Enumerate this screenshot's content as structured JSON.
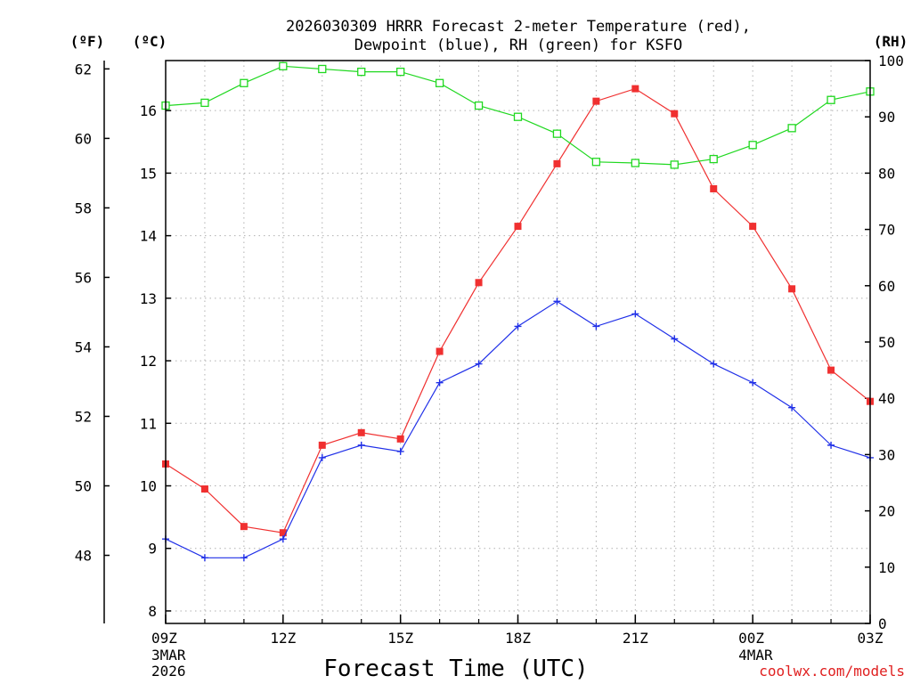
{
  "chart_data": {
    "type": "line",
    "title": "2026030309 HRRR Forecast 2-meter Temperature (red),",
    "subtitle": "Dewpoint (blue), RH (green) for KSFO",
    "xlabel": "Forecast Time (UTC)",
    "credit": "coolwx.com/models",
    "units": {
      "f": "(ºF)",
      "c": "(ºC)",
      "rh": "(RH)"
    },
    "x_hours": [
      0,
      1,
      2,
      3,
      4,
      5,
      6,
      7,
      8,
      9,
      10,
      11,
      12,
      13,
      14,
      15,
      16,
      17,
      18
    ],
    "xlim": [
      0,
      18
    ],
    "x_ticks": [
      {
        "hour": 0,
        "label": "09Z",
        "sub": [
          "3MAR",
          "2026"
        ]
      },
      {
        "hour": 3,
        "label": "12Z",
        "sub": []
      },
      {
        "hour": 6,
        "label": "15Z",
        "sub": []
      },
      {
        "hour": 9,
        "label": "18Z",
        "sub": []
      },
      {
        "hour": 12,
        "label": "21Z",
        "sub": []
      },
      {
        "hour": 15,
        "label": "00Z",
        "sub": [
          "4MAR"
        ]
      },
      {
        "hour": 18,
        "label": "03Z",
        "sub": []
      }
    ],
    "ylim_c": [
      7.8,
      16.8
    ],
    "ticks_c": [
      8,
      9,
      10,
      11,
      12,
      13,
      14,
      15,
      16
    ],
    "ticks_f": [
      48,
      50,
      52,
      54,
      56,
      58,
      60,
      62
    ],
    "ylim_rh": [
      0,
      100
    ],
    "ticks_rh": [
      0,
      10,
      20,
      30,
      40,
      50,
      60,
      70,
      80,
      90,
      100
    ],
    "series": [
      {
        "name": "Temperature",
        "color": "#f03030",
        "marker": "filled-square",
        "axis": "c",
        "values": [
          10.35,
          9.95,
          9.35,
          9.25,
          10.65,
          10.85,
          10.75,
          12.15,
          13.25,
          14.15,
          15.15,
          16.15,
          16.35,
          15.95,
          14.75,
          14.15,
          13.15,
          11.85,
          11.35
        ]
      },
      {
        "name": "Dewpoint",
        "color": "#2030e8",
        "marker": "plus",
        "axis": "c",
        "values": [
          9.15,
          8.85,
          8.85,
          9.15,
          10.45,
          10.65,
          10.55,
          11.65,
          11.95,
          12.55,
          12.95,
          12.55,
          12.75,
          12.35,
          11.95,
          11.65,
          11.25,
          10.65,
          10.45
        ]
      },
      {
        "name": "RH",
        "color": "#20d820",
        "marker": "open-square",
        "axis": "rh",
        "values": [
          92,
          92.5,
          96,
          99,
          98.5,
          98,
          98,
          96,
          92,
          90,
          87,
          82,
          81.8,
          81.5,
          82.5,
          85,
          88,
          93,
          94.5
        ]
      }
    ]
  }
}
